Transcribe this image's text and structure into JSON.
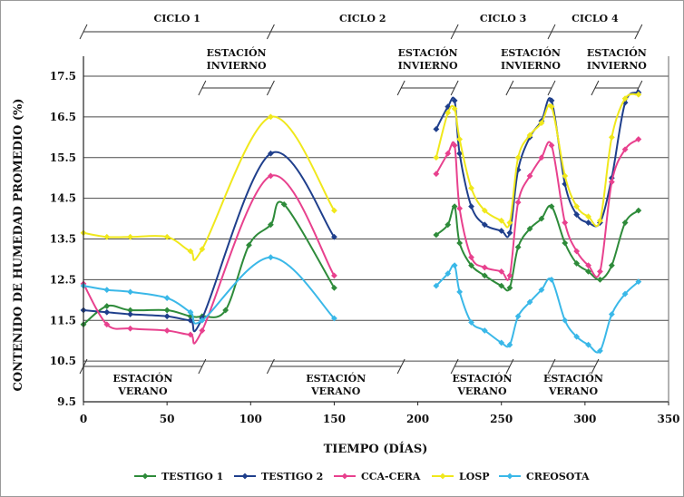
{
  "chart_data": {
    "type": "line",
    "xlabel": "TIEMPO (DÍAS)",
    "ylabel": "CONTENIDO DE HUMEDAD PROMEDIO (%)",
    "xlim": [
      0,
      350
    ],
    "ylim": [
      9.5,
      17.5
    ],
    "xticks": [
      0,
      50,
      100,
      150,
      200,
      250,
      300,
      350
    ],
    "yticks": [
      9.5,
      10.5,
      11.5,
      12.5,
      13.5,
      14.5,
      15.5,
      16.5,
      17.5
    ],
    "grid": "horizontal",
    "legend_position": "bottom",
    "cycles": [
      {
        "label": "CICLO 1",
        "from": 0,
        "to": 112
      },
      {
        "label": "CICLO 2",
        "from": 112,
        "to": 222
      },
      {
        "label": "CICLO 3",
        "from": 222,
        "to": 280
      },
      {
        "label": "CICLO 4",
        "from": 280,
        "to": 332
      }
    ],
    "winter_seasons": [
      {
        "label": [
          "ESTACIÓN",
          "INVIERNO"
        ],
        "from": 71,
        "to": 112
      },
      {
        "label": [
          "ESTACIÓN",
          "INVIERNO"
        ],
        "from": 190,
        "to": 222
      },
      {
        "label": [
          "ESTACIÓN",
          "INVIERNO"
        ],
        "from": 255,
        "to": 280
      },
      {
        "label": [
          "ESTACIÓN",
          "INVIERNO"
        ],
        "from": 306,
        "to": 332
      }
    ],
    "summer_seasons": [
      {
        "label": [
          "ESTACIÓN",
          "VERANO"
        ],
        "from": 0,
        "to": 71
      },
      {
        "label": [
          "ESTACIÓN",
          "VERANO"
        ],
        "from": 112,
        "to": 190
      },
      {
        "label": [
          "ESTACIÓN",
          "VERANO"
        ],
        "from": 222,
        "to": 255
      },
      {
        "label": [
          "ESTACIÓN",
          "VERANO"
        ],
        "from": 280,
        "to": 306
      }
    ],
    "series": [
      {
        "name": "TESTIGO 1",
        "color": "#2e8b3a",
        "segments": [
          [
            [
              0,
              11.4
            ],
            [
              14,
              11.85
            ],
            [
              28,
              11.75
            ],
            [
              50,
              11.75
            ],
            [
              64,
              11.6
            ],
            [
              71,
              11.6
            ],
            [
              85,
              11.75
            ],
            [
              99,
              13.35
            ],
            [
              112,
              13.85
            ],
            [
              120,
              14.35
            ],
            [
              150,
              12.3
            ]
          ],
          [
            [
              211,
              13.6
            ],
            [
              218,
              13.85
            ],
            [
              222,
              14.3
            ],
            [
              225,
              13.4
            ],
            [
              232,
              12.85
            ],
            [
              240,
              12.6
            ],
            [
              250,
              12.35
            ],
            [
              255,
              12.3
            ],
            [
              260,
              13.3
            ],
            [
              267,
              13.75
            ],
            [
              274,
              14.0
            ],
            [
              280,
              14.3
            ],
            [
              288,
              13.4
            ],
            [
              295,
              12.9
            ],
            [
              302,
              12.7
            ],
            [
              309,
              12.5
            ],
            [
              316,
              12.85
            ],
            [
              324,
              13.9
            ],
            [
              332,
              14.2
            ]
          ]
        ]
      },
      {
        "name": "TESTIGO 2",
        "color": "#1f3f8c",
        "segments": [
          [
            [
              0,
              11.75
            ],
            [
              14,
              11.7
            ],
            [
              28,
              11.65
            ],
            [
              50,
              11.6
            ],
            [
              64,
              11.5
            ],
            [
              71,
              11.55
            ],
            [
              112,
              15.6
            ],
            [
              150,
              13.55
            ]
          ],
          [
            [
              211,
              16.2
            ],
            [
              218,
              16.75
            ],
            [
              222,
              16.9
            ],
            [
              225,
              15.6
            ],
            [
              232,
              14.3
            ],
            [
              240,
              13.85
            ],
            [
              250,
              13.7
            ],
            [
              255,
              13.65
            ],
            [
              260,
              15.2
            ],
            [
              267,
              16.0
            ],
            [
              274,
              16.4
            ],
            [
              280,
              16.9
            ],
            [
              288,
              14.85
            ],
            [
              295,
              14.1
            ],
            [
              302,
              13.9
            ],
            [
              309,
              13.9
            ],
            [
              316,
              15.0
            ],
            [
              324,
              16.85
            ],
            [
              332,
              17.1
            ]
          ]
        ]
      },
      {
        "name": "CCA-CERA",
        "color": "#e8418e",
        "segments": [
          [
            [
              0,
              12.4
            ],
            [
              14,
              11.4
            ],
            [
              28,
              11.3
            ],
            [
              50,
              11.25
            ],
            [
              64,
              11.15
            ],
            [
              71,
              11.25
            ],
            [
              112,
              15.05
            ],
            [
              150,
              12.6
            ]
          ],
          [
            [
              211,
              15.1
            ],
            [
              218,
              15.6
            ],
            [
              222,
              15.8
            ],
            [
              225,
              14.25
            ],
            [
              232,
              13.05
            ],
            [
              240,
              12.8
            ],
            [
              250,
              12.7
            ],
            [
              255,
              12.6
            ],
            [
              260,
              14.4
            ],
            [
              267,
              15.05
            ],
            [
              274,
              15.5
            ],
            [
              280,
              15.8
            ],
            [
              288,
              13.9
            ],
            [
              295,
              13.2
            ],
            [
              302,
              12.85
            ],
            [
              309,
              12.7
            ],
            [
              316,
              14.9
            ],
            [
              324,
              15.7
            ],
            [
              332,
              15.95
            ]
          ]
        ]
      },
      {
        "name": "LOSP",
        "color": "#f0e81c",
        "segments": [
          [
            [
              0,
              13.65
            ],
            [
              14,
              13.55
            ],
            [
              28,
              13.55
            ],
            [
              50,
              13.55
            ],
            [
              64,
              13.2
            ],
            [
              71,
              13.25
            ],
            [
              112,
              16.5
            ],
            [
              150,
              14.2
            ]
          ],
          [
            [
              211,
              15.5
            ],
            [
              218,
              16.6
            ],
            [
              222,
              16.7
            ],
            [
              225,
              15.95
            ],
            [
              232,
              14.75
            ],
            [
              240,
              14.2
            ],
            [
              250,
              13.95
            ],
            [
              255,
              13.9
            ],
            [
              260,
              15.5
            ],
            [
              267,
              16.05
            ],
            [
              274,
              16.35
            ],
            [
              280,
              16.75
            ],
            [
              288,
              15.05
            ],
            [
              295,
              14.3
            ],
            [
              302,
              14.05
            ],
            [
              309,
              13.95
            ],
            [
              316,
              16.0
            ],
            [
              324,
              16.95
            ],
            [
              332,
              17.05
            ]
          ]
        ]
      },
      {
        "name": "CREOSOTA",
        "color": "#3ab8e8",
        "segments": [
          [
            [
              0,
              12.35
            ],
            [
              14,
              12.25
            ],
            [
              28,
              12.2
            ],
            [
              50,
              12.05
            ],
            [
              64,
              11.7
            ],
            [
              71,
              11.5
            ],
            [
              112,
              13.05
            ],
            [
              150,
              11.55
            ]
          ],
          [
            [
              211,
              12.35
            ],
            [
              218,
              12.65
            ],
            [
              222,
              12.85
            ],
            [
              225,
              12.2
            ],
            [
              232,
              11.45
            ],
            [
              240,
              11.25
            ],
            [
              250,
              10.95
            ],
            [
              255,
              10.9
            ],
            [
              260,
              11.6
            ],
            [
              267,
              11.95
            ],
            [
              274,
              12.25
            ],
            [
              280,
              12.5
            ],
            [
              288,
              11.5
            ],
            [
              295,
              11.1
            ],
            [
              302,
              10.9
            ],
            [
              309,
              10.75
            ],
            [
              316,
              11.65
            ],
            [
              324,
              12.15
            ],
            [
              332,
              12.45
            ]
          ]
        ]
      }
    ]
  }
}
